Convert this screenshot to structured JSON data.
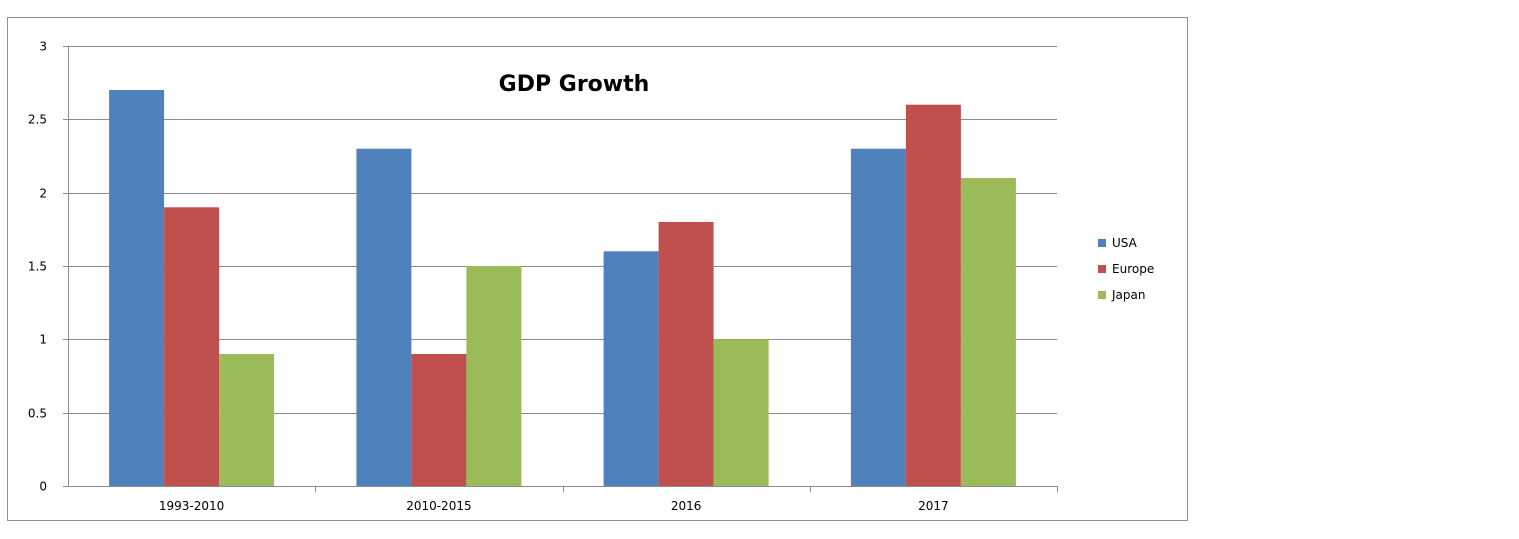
{
  "chart_data": {
    "type": "bar",
    "title": "GDP Growth",
    "xlabel": "",
    "ylabel": "",
    "categories": [
      "1993-2010",
      "2010-2015",
      "2016",
      "2017"
    ],
    "series": [
      {
        "name": "USA",
        "color": "#4f81bd",
        "values": [
          2.7,
          2.3,
          1.6,
          2.3
        ]
      },
      {
        "name": "Europe",
        "color": "#c0504d",
        "values": [
          1.9,
          0.9,
          1.8,
          2.6
        ]
      },
      {
        "name": "Japan",
        "color": "#9bbb59",
        "values": [
          0.9,
          1.5,
          1.0,
          2.1
        ]
      }
    ],
    "ylim": [
      0,
      3
    ],
    "yticks": [
      0,
      0.5,
      1,
      1.5,
      2,
      2.5,
      3
    ],
    "ytick_labels": [
      "0",
      "0.5",
      "1",
      "1.5",
      "2",
      "2.5",
      "3"
    ],
    "grid": true,
    "legend_position": "right"
  }
}
